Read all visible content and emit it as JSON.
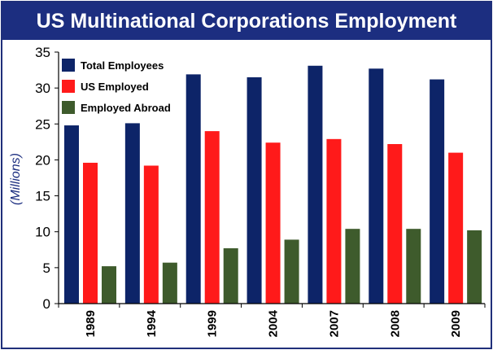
{
  "title": "US Multinational Corporations Employment",
  "chart_data": {
    "type": "bar",
    "title": "US Multinational Corporations Employment",
    "xlabel": "",
    "ylabel": "(Millions)",
    "ylim": [
      0,
      35
    ],
    "yticks": [
      "0",
      "5",
      "10",
      "15",
      "20",
      "25",
      "30",
      "35"
    ],
    "grid": false,
    "legend_position": "top-left",
    "categories": [
      "1989",
      "1994",
      "1999",
      "2004",
      "2007",
      "2008",
      "2009"
    ],
    "series": [
      {
        "name": "Total Employees",
        "color": "#0d2468",
        "values": [
          24.8,
          25.1,
          31.9,
          31.5,
          33.1,
          32.7,
          31.2
        ]
      },
      {
        "name": "US Employed",
        "color": "#ff1a1a",
        "values": [
          19.6,
          19.2,
          24.0,
          22.4,
          22.9,
          22.2,
          21.0
        ]
      },
      {
        "name": "Employed Abroad",
        "color": "#3e5b2c",
        "values": [
          5.2,
          5.7,
          7.7,
          8.9,
          10.4,
          10.4,
          10.2
        ]
      }
    ]
  }
}
